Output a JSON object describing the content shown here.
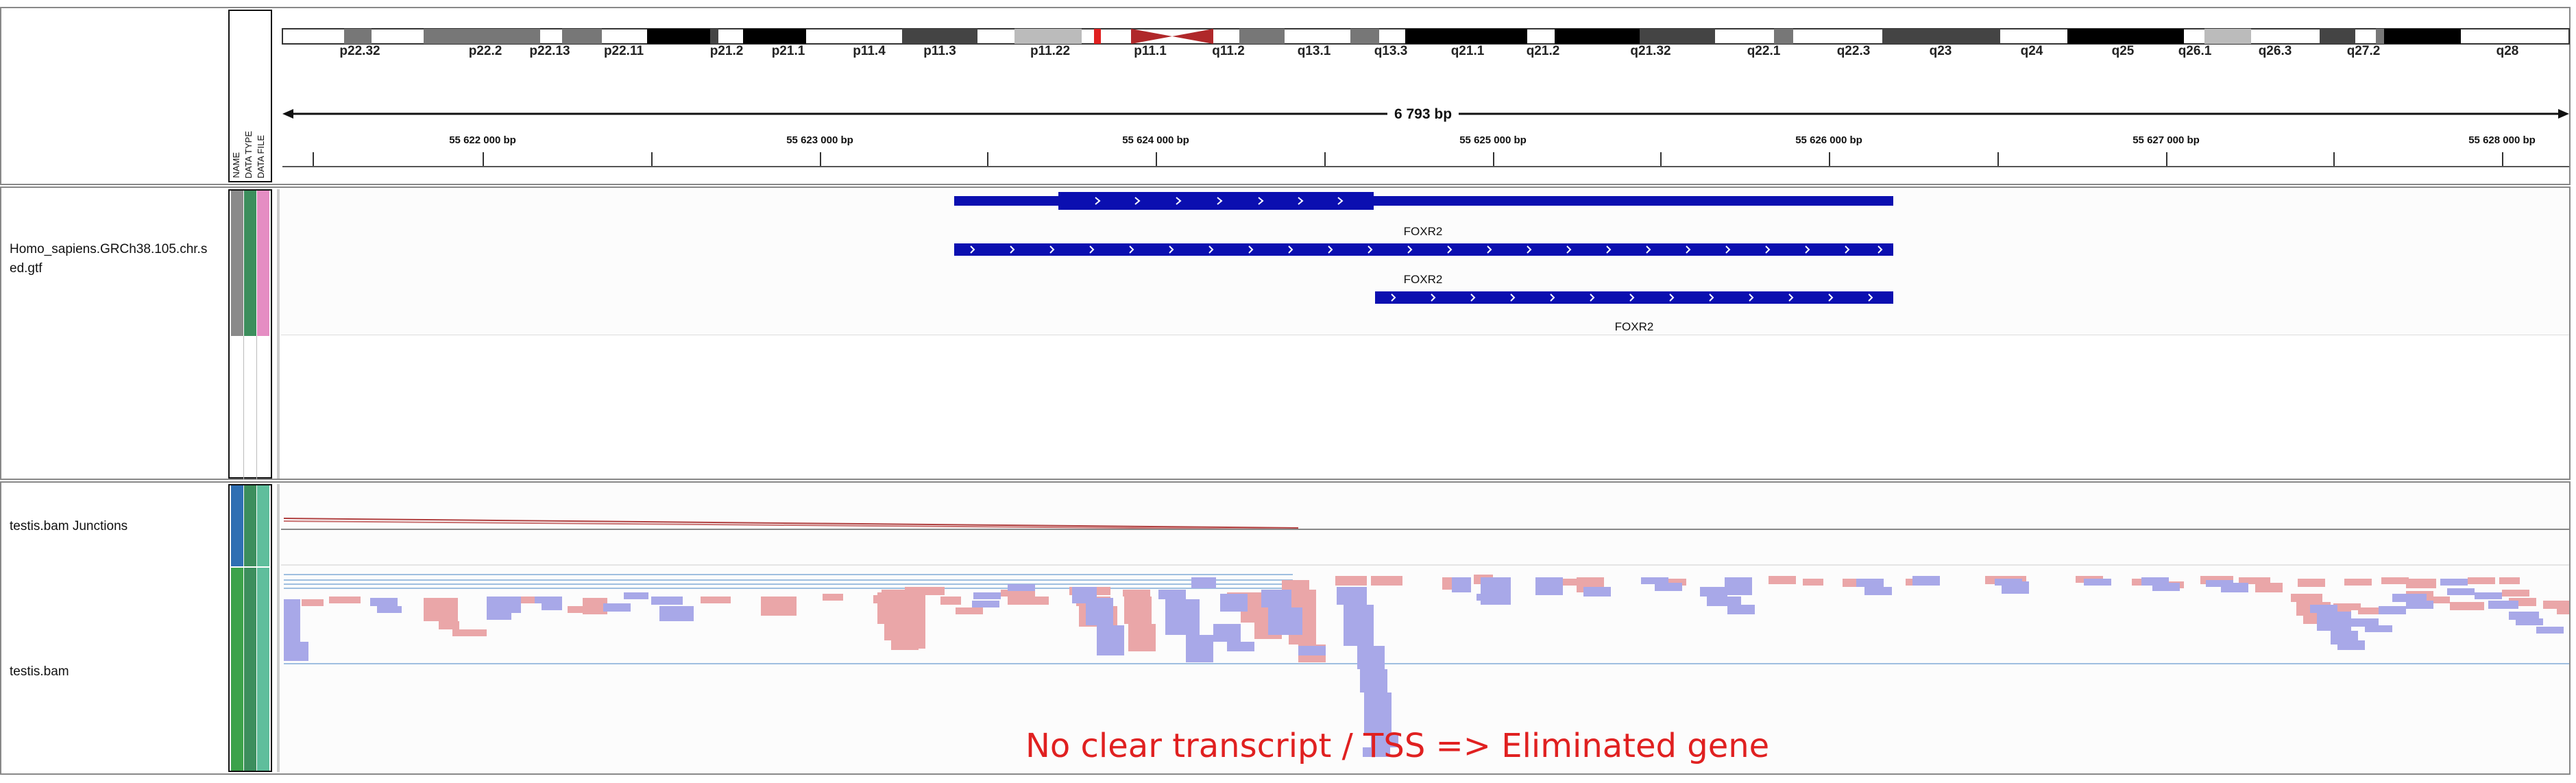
{
  "ideogram": {
    "bands": [
      "p22.32",
      "p22.2",
      "p22.13",
      "p22.11",
      "p21.2",
      "p21.1",
      "p11.4",
      "p11.3",
      "p11.22",
      "p11.1",
      "q11.2",
      "q13.1",
      "q13.3",
      "q21.1",
      "q21.2",
      "q21.32",
      "q22.1",
      "q22.3",
      "q23",
      "q24",
      "q25",
      "q26.1",
      "q26.3",
      "q27.2",
      "q28"
    ]
  },
  "ruler": {
    "span_label": "6 793 bp",
    "ticks": [
      "55 622 000 bp",
      "55 623 000 bp",
      "55 624 000 bp",
      "55 625 000 bp",
      "55 626 000 bp",
      "55 627 000 bp",
      "55 628 000 bp"
    ]
  },
  "attribute_header": {
    "name": "NAME",
    "type": "DATA TYPE",
    "file": "DATA FILE"
  },
  "tracks": {
    "gtf": {
      "name_line1": "Homo_sapiens.GRCh38.105.chr.s",
      "name_line2": "ed.gtf"
    },
    "junctions": {
      "name": "testis.bam Junctions"
    },
    "bam": {
      "name": "testis.bam"
    }
  },
  "genes": [
    {
      "label": "FOXR2"
    },
    {
      "label": "FOXR2"
    },
    {
      "label": "FOXR2"
    }
  ],
  "annotation": "No clear transcript / TSS => Eliminated gene",
  "colors": {
    "gene": "#0b0fb0",
    "read_forward": "#eaa6a8",
    "read_reverse": "#a8a8e8",
    "annotation": "#e02020",
    "centromere": "#b0282a"
  }
}
